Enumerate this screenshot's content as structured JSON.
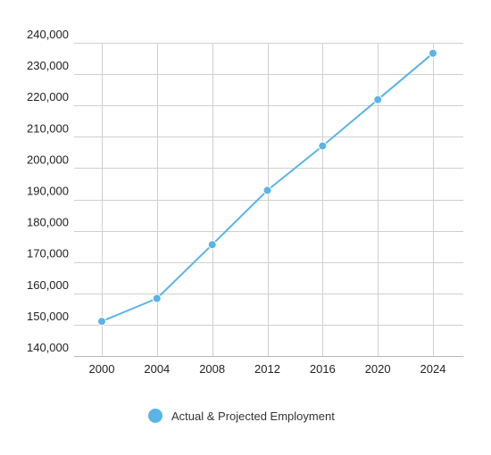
{
  "chart_data": {
    "type": "line",
    "x": [
      2000,
      2004,
      2008,
      2012,
      2016,
      2020,
      2024
    ],
    "x_tick_labels": [
      "2000",
      "2004",
      "2008",
      "2012",
      "2016",
      "2020",
      "2024"
    ],
    "y_tick_labels": [
      "140,000",
      "150,000",
      "160,000",
      "170,000",
      "180,000",
      "190,000",
      "200,000",
      "210,000",
      "220,000",
      "230,000",
      "240,000"
    ],
    "ylim": [
      140000,
      240000
    ],
    "grid": true,
    "legend_position": "bottom-center",
    "series": [
      {
        "name": "Actual & Projected Employment",
        "color": "#5ab4e6",
        "values": [
          148500,
          155800,
          173000,
          190300,
          204500,
          219300,
          234100
        ]
      }
    ]
  }
}
